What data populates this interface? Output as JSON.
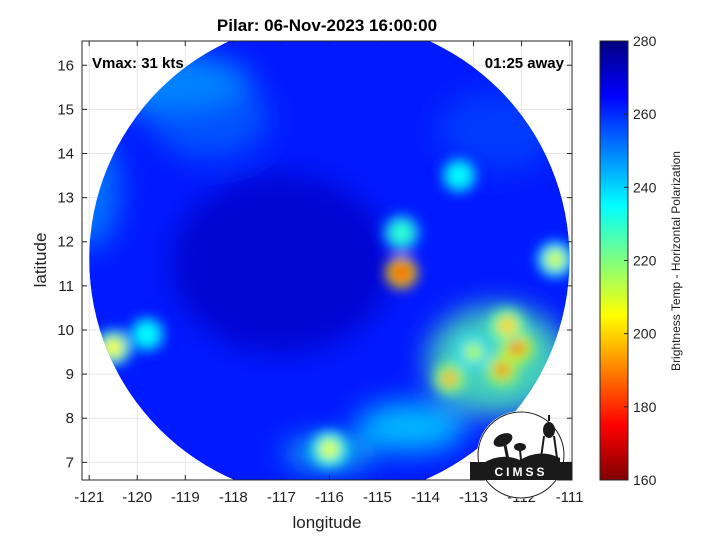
{
  "chart_data": {
    "type": "heatmap",
    "title": "Pilar: 06-Nov-2023 16:00:00",
    "xlabel": "longitude",
    "ylabel": "latitude",
    "xlim": [
      -121.15,
      -110.95
    ],
    "ylim": [
      6.6,
      16.55
    ],
    "x_ticks": [
      -121,
      -120,
      -119,
      -118,
      -117,
      -116,
      -115,
      -114,
      -113,
      -112,
      -111
    ],
    "y_ticks": [
      7,
      8,
      9,
      10,
      11,
      12,
      13,
      14,
      15,
      16
    ],
    "grid": true,
    "annotations": {
      "vmax": "Vmax: 31 kts",
      "time_away": "01:25 away"
    },
    "colorbar": {
      "label": "Brightness Temp - Horizontal Polarization",
      "range": [
        160,
        280
      ],
      "ticks": [
        160,
        180,
        200,
        220,
        240,
        260,
        280
      ],
      "colormap": "jet"
    },
    "swath": {
      "center": [
        -116.0,
        11.6
      ],
      "radius_deg": 5.0
    },
    "cold_regions": [
      {
        "lon": -114.5,
        "lat": 11.3,
        "value": 175
      },
      {
        "lon": -112.1,
        "lat": 9.6,
        "value": 185
      },
      {
        "lon": -112.4,
        "lat": 9.1,
        "value": 190
      },
      {
        "lon": -113.5,
        "lat": 8.9,
        "value": 195
      },
      {
        "lon": -112.3,
        "lat": 10.1,
        "value": 200
      },
      {
        "lon": -120.5,
        "lat": 9.6,
        "value": 205
      },
      {
        "lon": -116.0,
        "lat": 7.3,
        "value": 208
      },
      {
        "lon": -111.3,
        "lat": 11.6,
        "value": 210
      },
      {
        "lon": -113.0,
        "lat": 9.5,
        "value": 215
      },
      {
        "lon": -114.5,
        "lat": 12.2,
        "value": 230
      },
      {
        "lon": -113.3,
        "lat": 13.5,
        "value": 235
      },
      {
        "lon": -119.8,
        "lat": 9.9,
        "value": 235
      }
    ],
    "warm_bands": [
      {
        "lon": -118.5,
        "lat": 14.8,
        "value": 250
      },
      {
        "lon": -112.5,
        "lat": 14.5,
        "value": 255
      }
    ]
  },
  "logo": {
    "text": "CIMSS"
  }
}
